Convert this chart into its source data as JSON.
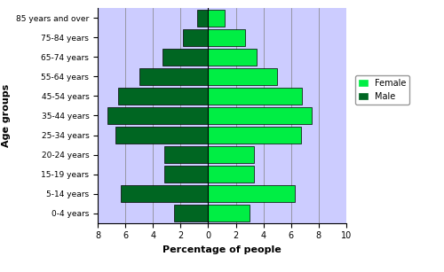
{
  "age_groups": [
    "0-4 years",
    "5-14 years",
    "15-19 years",
    "20-24 years",
    "25-34 years",
    "35-44 years",
    "45-54 years",
    "55-64 years",
    "65-74 years",
    "75-84 years",
    "85 years and over"
  ],
  "male_values": [
    2.5,
    6.3,
    3.2,
    3.2,
    6.7,
    7.3,
    6.5,
    5.0,
    3.3,
    1.8,
    0.8
  ],
  "female_values": [
    3.0,
    6.3,
    3.3,
    3.3,
    6.7,
    7.5,
    6.8,
    5.0,
    3.5,
    2.7,
    1.2
  ],
  "male_color": "#006622",
  "female_color": "#00ee44",
  "background_color": "#ccccff",
  "xlim": [
    -8,
    10
  ],
  "xticks": [
    -8,
    -6,
    -4,
    -2,
    0,
    2,
    4,
    6,
    8,
    10
  ],
  "xticklabels": [
    "8",
    "6",
    "4",
    "2",
    "0",
    "2",
    "4",
    "6",
    "8",
    "10"
  ],
  "xlabel": "Percentage of people",
  "ylabel": "Age groups",
  "bar_height": 0.85,
  "legend_female_label": "Female",
  "legend_male_label": "Male"
}
